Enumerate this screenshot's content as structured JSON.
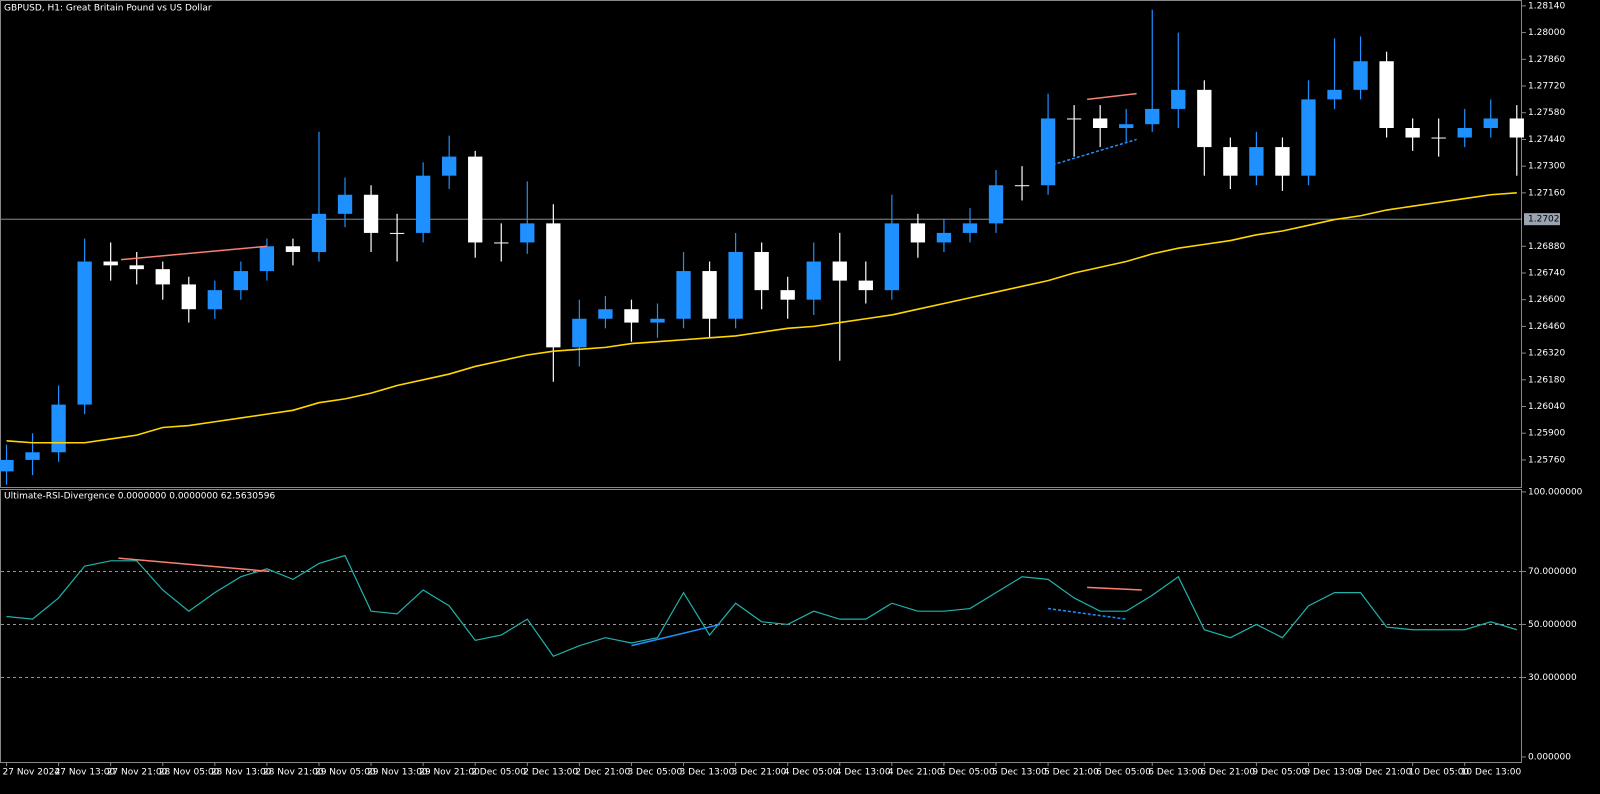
{
  "chart_data": [
    {
      "type": "candlestick",
      "title": "GBPUSD, H1:  Great Britain Pound vs US Dollar",
      "up_color": "#1e90ff",
      "down_color": "#ffffff",
      "open": [
        1.257,
        1.2576,
        1.258,
        1.2605,
        1.268,
        1.2678,
        1.2676,
        1.2668,
        1.2655,
        1.2665,
        1.2675,
        1.2688,
        1.2685,
        1.2705,
        1.2715,
        1.2695,
        1.2695,
        1.2725,
        1.2735,
        1.269,
        1.269,
        1.27,
        1.2635,
        1.265,
        1.2655,
        1.2648,
        1.265,
        1.2675,
        1.265,
        1.2685,
        1.2665,
        1.266,
        1.268,
        1.267,
        1.2665,
        1.27,
        1.269,
        1.2695,
        1.27,
        1.272,
        1.272,
        1.2755,
        1.2755,
        1.275,
        1.2752,
        1.276,
        1.277,
        1.274,
        1.2725,
        1.274,
        1.2725,
        1.2765,
        1.277,
        1.2785,
        1.275,
        1.2745,
        1.2745,
        1.275,
        1.2755
      ],
      "high": [
        1.2584,
        1.259,
        1.2615,
        1.2692,
        1.269,
        1.2685,
        1.268,
        1.2672,
        1.267,
        1.268,
        1.2692,
        1.2692,
        1.2748,
        1.2724,
        1.272,
        1.2705,
        1.2732,
        1.2746,
        1.2738,
        1.27,
        1.2722,
        1.271,
        1.266,
        1.2662,
        1.266,
        1.2658,
        1.2685,
        1.268,
        1.2695,
        1.269,
        1.2672,
        1.269,
        1.2695,
        1.268,
        1.2715,
        1.2705,
        1.2702,
        1.2708,
        1.2728,
        1.273,
        1.2768,
        1.2762,
        1.2762,
        1.276,
        1.2812,
        1.28,
        1.2775,
        1.2745,
        1.2748,
        1.2745,
        1.2775,
        1.2797,
        1.2798,
        1.279,
        1.2755,
        1.2755,
        1.276,
        1.2765,
        1.2762
      ],
      "low": [
        1.2563,
        1.2568,
        1.2575,
        1.26,
        1.267,
        1.2668,
        1.266,
        1.2648,
        1.265,
        1.266,
        1.267,
        1.2678,
        1.268,
        1.2698,
        1.2685,
        1.268,
        1.269,
        1.2718,
        1.2682,
        1.268,
        1.2684,
        1.2617,
        1.2625,
        1.2645,
        1.2638,
        1.264,
        1.2645,
        1.264,
        1.2645,
        1.2655,
        1.265,
        1.2652,
        1.2628,
        1.2658,
        1.266,
        1.2682,
        1.2685,
        1.269,
        1.2695,
        1.2712,
        1.2715,
        1.2735,
        1.274,
        1.2742,
        1.2748,
        1.275,
        1.2725,
        1.2718,
        1.272,
        1.2717,
        1.272,
        1.276,
        1.2765,
        1.2745,
        1.2738,
        1.2735,
        1.274,
        1.2745,
        1.2725
      ],
      "close": [
        1.2576,
        1.258,
        1.2605,
        1.268,
        1.2678,
        1.2676,
        1.2668,
        1.2655,
        1.2665,
        1.2675,
        1.2688,
        1.2685,
        1.2705,
        1.2715,
        1.2695,
        1.2695,
        1.2725,
        1.2735,
        1.269,
        1.269,
        1.27,
        1.2635,
        1.265,
        1.2655,
        1.2648,
        1.265,
        1.2675,
        1.265,
        1.2685,
        1.2665,
        1.266,
        1.268,
        1.267,
        1.2665,
        1.27,
        1.269,
        1.2695,
        1.27,
        1.272,
        1.272,
        1.2755,
        1.2755,
        1.275,
        1.2752,
        1.276,
        1.277,
        1.274,
        1.2725,
        1.274,
        1.2725,
        1.2765,
        1.277,
        1.2785,
        1.275,
        1.2745,
        1.2745,
        1.275,
        1.2755,
        1.2745
      ],
      "ma": {
        "color": "#ffd700",
        "values": [
          1.2586,
          1.2585,
          1.2585,
          1.2585,
          1.2587,
          1.2589,
          1.2593,
          1.2594,
          1.2596,
          1.2598,
          1.26,
          1.2602,
          1.2606,
          1.2608,
          1.2611,
          1.2615,
          1.2618,
          1.2621,
          1.2625,
          1.2628,
          1.2631,
          1.2633,
          1.2634,
          1.2635,
          1.2637,
          1.2638,
          1.2639,
          1.264,
          1.2641,
          1.2643,
          1.2645,
          1.2646,
          1.2648,
          1.265,
          1.2652,
          1.2655,
          1.2658,
          1.2661,
          1.2664,
          1.2667,
          1.267,
          1.2674,
          1.2677,
          1.268,
          1.2684,
          1.2687,
          1.2689,
          1.2691,
          1.2694,
          1.2696,
          1.2699,
          1.2702,
          1.2704,
          1.2707,
          1.2709,
          1.2711,
          1.2713,
          1.2715,
          1.2716
        ]
      },
      "divergence_lines": [
        {
          "color": "#fa8072",
          "dashed": false,
          "x": [
            4.4,
            10
          ],
          "y": [
            1.2681,
            1.2688
          ]
        },
        {
          "color": "#1e90ff",
          "dashed": true,
          "x": [
            40,
            43.4
          ],
          "y": [
            1.273,
            1.2744
          ]
        },
        {
          "color": "#fa8072",
          "dashed": false,
          "x": [
            41.5,
            43.4
          ],
          "y": [
            1.2765,
            1.2768
          ]
        }
      ],
      "current_price": {
        "value": 1.27022,
        "label": "1.27022"
      },
      "xlim": [
        -0.25,
        58.2
      ],
      "ylim": [
        1.25618,
        1.28171
      ],
      "yticks": [
        {
          "value": 1.2814,
          "label": "1.28140"
        },
        {
          "value": 1.28,
          "label": "1.28000"
        },
        {
          "value": 1.2786,
          "label": "1.27860"
        },
        {
          "value": 1.2772,
          "label": "1.27720"
        },
        {
          "value": 1.2758,
          "label": "1.27580"
        },
        {
          "value": 1.2744,
          "label": "1.27440"
        },
        {
          "value": 1.273,
          "label": "1.27300"
        },
        {
          "value": 1.2716,
          "label": "1.27160"
        },
        {
          "value": 1.2688,
          "label": "1.26880"
        },
        {
          "value": 1.2674,
          "label": "1.26740"
        },
        {
          "value": 1.266,
          "label": "1.26600"
        },
        {
          "value": 1.2646,
          "label": "1.26460"
        },
        {
          "value": 1.2632,
          "label": "1.26320"
        },
        {
          "value": 1.2618,
          "label": "1.26180"
        },
        {
          "value": 1.2604,
          "label": "1.26040"
        },
        {
          "value": 1.259,
          "label": "1.25900"
        },
        {
          "value": 1.2576,
          "label": "1.25760"
        }
      ]
    },
    {
      "type": "line",
      "title": "Ultimate-RSI-Divergence 0.0000000 0.0000000 62.5630596",
      "color": "#20b2aa",
      "values": [
        53,
        52,
        60,
        72,
        74,
        74,
        63,
        55,
        62,
        68,
        71,
        67,
        73,
        76,
        55,
        54,
        63,
        57,
        44,
        46,
        52,
        38,
        42,
        45,
        43,
        45,
        62,
        46,
        58,
        51,
        50,
        55,
        52,
        52,
        58,
        55,
        55,
        56,
        62,
        68,
        67,
        60,
        55,
        55,
        61,
        68,
        48,
        45,
        50,
        45,
        57,
        62,
        62,
        49,
        48,
        48,
        48,
        51,
        48
      ],
      "divergence_lines": [
        {
          "color": "#fa8072",
          "dashed": false,
          "x": [
            4.3,
            10.1
          ],
          "y": [
            75,
            70
          ]
        },
        {
          "color": "#1e90ff",
          "dashed": false,
          "x": [
            24,
            27.4
          ],
          "y": [
            42,
            50
          ]
        },
        {
          "color": "#1e90ff",
          "dashed": true,
          "x": [
            40,
            43
          ],
          "y": [
            56,
            52
          ]
        },
        {
          "color": "#fa8072",
          "dashed": false,
          "x": [
            41.5,
            43.6
          ],
          "y": [
            64,
            63
          ]
        }
      ],
      "xlim": [
        -0.25,
        58.2
      ],
      "ylim": [
        -1.9,
        101.1
      ],
      "yticks": [
        {
          "value": 100,
          "label": "100.000000"
        },
        {
          "value": 70,
          "label": "70.000000"
        },
        {
          "value": 50,
          "label": "50.000000"
        },
        {
          "value": 30,
          "label": "30.000000"
        },
        {
          "value": 0,
          "label": "0.000000"
        }
      ],
      "xticks": [
        {
          "value": 0,
          "label": "27 Nov 2024"
        },
        {
          "value": 2,
          "label": "27 Nov 13:00"
        },
        {
          "value": 4,
          "label": "27 Nov 21:00"
        },
        {
          "value": 6,
          "label": "28 Nov 05:00"
        },
        {
          "value": 8,
          "label": "28 Nov 13:00"
        },
        {
          "value": 10,
          "label": "28 Nov 21:00"
        },
        {
          "value": 12,
          "label": "29 Nov 05:00"
        },
        {
          "value": 14,
          "label": "29 Nov 13:00"
        },
        {
          "value": 16,
          "label": "29 Nov 21:00"
        },
        {
          "value": 18,
          "label": "2 Dec 05:00"
        },
        {
          "value": 20,
          "label": "2 Dec 13:00"
        },
        {
          "value": 22,
          "label": "2 Dec 21:00"
        },
        {
          "value": 24,
          "label": "3 Dec 05:00"
        },
        {
          "value": 26,
          "label": "3 Dec 13:00"
        },
        {
          "value": 28,
          "label": "3 Dec 21:00"
        },
        {
          "value": 30,
          "label": "4 Dec 05:00"
        },
        {
          "value": 32,
          "label": "4 Dec 13:00"
        },
        {
          "value": 34,
          "label": "4 Dec 21:00"
        },
        {
          "value": 36,
          "label": "5 Dec 05:00"
        },
        {
          "value": 38,
          "label": "5 Dec 13:00"
        },
        {
          "value": 40,
          "label": "5 Dec 21:00"
        },
        {
          "value": 42,
          "label": "6 Dec 05:00"
        },
        {
          "value": 44,
          "label": "6 Dec 13:00"
        },
        {
          "value": 46,
          "label": "6 Dec 21:00"
        },
        {
          "value": 48,
          "label": "9 Dec 05:00"
        },
        {
          "value": 50,
          "label": "9 Dec 13:00"
        },
        {
          "value": 52,
          "label": "9 Dec 21:00"
        },
        {
          "value": 54,
          "label": "10 Dec 05:00"
        },
        {
          "value": 56,
          "label": "10 Dec 13:00"
        }
      ]
    }
  ]
}
